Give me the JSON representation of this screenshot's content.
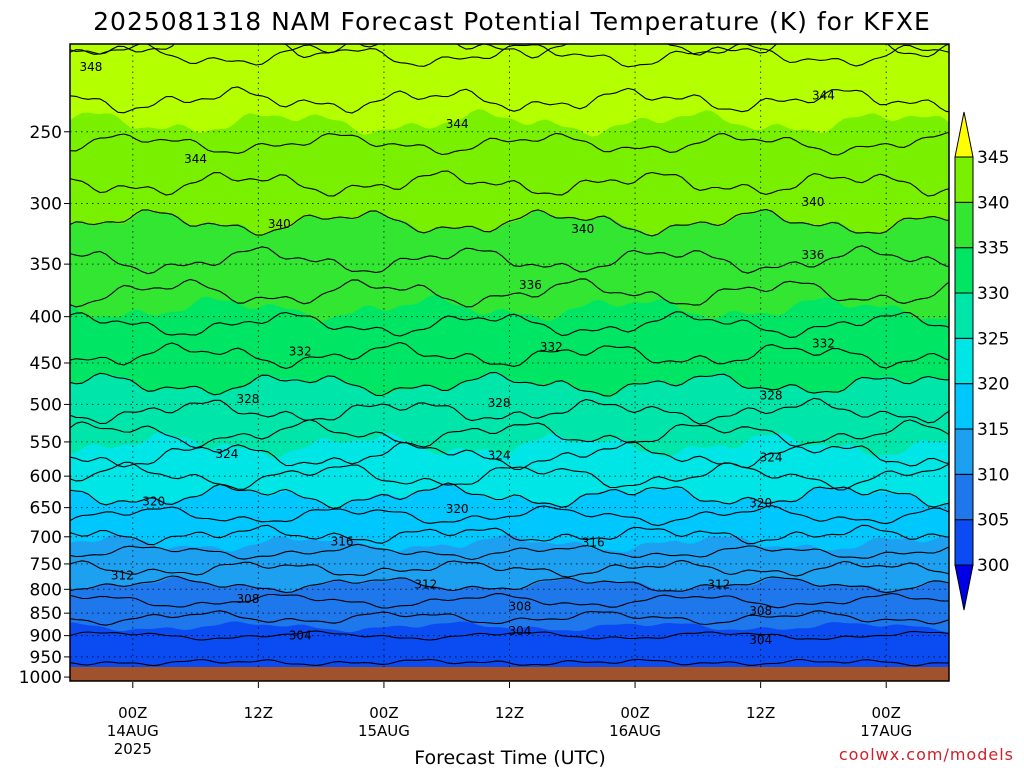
{
  "chart_data": {
    "type": "heatmap",
    "title": "2025081318 NAM Forecast Potential Temperature (K) for KFXE",
    "xlabel": "Forecast Time (UTC)",
    "ylabel": "",
    "y_axis": {
      "scale": "log-pressure",
      "range_hpa": [
        200,
        1010
      ],
      "reversed": true
    },
    "y_ticks": [
      "250",
      "300",
      "350",
      "400",
      "450",
      "500",
      "550",
      "600",
      "650",
      "700",
      "750",
      "800",
      "850",
      "900",
      "950",
      "1000"
    ],
    "x_ticks": [
      {
        "hour": 6,
        "line1": "00Z",
        "line2": "14AUG",
        "line3": "2025"
      },
      {
        "hour": 18,
        "line1": "12Z",
        "line2": "",
        "line3": ""
      },
      {
        "hour": 30,
        "line1": "00Z",
        "line2": "15AUG",
        "line3": ""
      },
      {
        "hour": 42,
        "line1": "12Z",
        "line2": "",
        "line3": ""
      },
      {
        "hour": 54,
        "line1": "00Z",
        "line2": "16AUG",
        "line3": ""
      },
      {
        "hour": 66,
        "line1": "12Z",
        "line2": "",
        "line3": ""
      },
      {
        "hour": 78,
        "line1": "00Z",
        "line2": "17AUG",
        "line3": ""
      }
    ],
    "x_range_hours": [
      0,
      84
    ],
    "colorbar": {
      "levels": [
        300,
        305,
        310,
        315,
        320,
        325,
        330,
        335,
        340,
        345
      ],
      "labels": [
        "300",
        "305",
        "310",
        "315",
        "320",
        "325",
        "330",
        "335",
        "340",
        "345"
      ],
      "colors": [
        "#0000e6",
        "#0a4bf2",
        "#1e78eb",
        "#1ea0f0",
        "#00c8ff",
        "#00e6e6",
        "#00e6aa",
        "#00e664",
        "#32e632",
        "#78f000",
        "#b4ff00",
        "#ffff00"
      ]
    },
    "profile": {
      "pressure_hpa": [
        200,
        250,
        300,
        350,
        400,
        450,
        500,
        550,
        600,
        650,
        700,
        750,
        800,
        850,
        900,
        950,
        1000
      ],
      "theta_k": [
        348.5,
        344.6,
        341.0,
        337.8,
        334.5,
        331.5,
        328.6,
        325.3,
        322.0,
        318.8,
        315.8,
        312.6,
        309.4,
        306.5,
        304.0,
        302.3,
        301.2
      ]
    },
    "contour_labels": [
      {
        "text": "348",
        "hour": 2,
        "p": 212
      },
      {
        "text": "344",
        "hour": 12,
        "p": 268
      },
      {
        "text": "344",
        "hour": 37,
        "p": 245
      },
      {
        "text": "344",
        "hour": 72,
        "p": 228
      },
      {
        "text": "340",
        "hour": 20,
        "p": 316
      },
      {
        "text": "340",
        "hour": 49,
        "p": 320
      },
      {
        "text": "340",
        "hour": 71,
        "p": 299
      },
      {
        "text": "336",
        "hour": 44,
        "p": 369
      },
      {
        "text": "336",
        "hour": 71,
        "p": 342
      },
      {
        "text": "332",
        "hour": 22,
        "p": 437
      },
      {
        "text": "332",
        "hour": 46,
        "p": 432
      },
      {
        "text": "332",
        "hour": 72,
        "p": 428
      },
      {
        "text": "328",
        "hour": 17,
        "p": 493
      },
      {
        "text": "328",
        "hour": 41,
        "p": 498
      },
      {
        "text": "328",
        "hour": 67,
        "p": 489
      },
      {
        "text": "324",
        "hour": 15,
        "p": 567
      },
      {
        "text": "324",
        "hour": 41,
        "p": 569
      },
      {
        "text": "324",
        "hour": 67,
        "p": 572
      },
      {
        "text": "320",
        "hour": 8,
        "p": 640
      },
      {
        "text": "320",
        "hour": 37,
        "p": 652
      },
      {
        "text": "320",
        "hour": 66,
        "p": 642
      },
      {
        "text": "316",
        "hour": 26,
        "p": 708
      },
      {
        "text": "316",
        "hour": 50,
        "p": 710
      },
      {
        "text": "312",
        "hour": 5,
        "p": 772
      },
      {
        "text": "312",
        "hour": 34,
        "p": 790
      },
      {
        "text": "312",
        "hour": 62,
        "p": 790
      },
      {
        "text": "308",
        "hour": 17,
        "p": 820
      },
      {
        "text": "308",
        "hour": 43,
        "p": 836
      },
      {
        "text": "308",
        "hour": 66,
        "p": 845
      },
      {
        "text": "304",
        "hour": 22,
        "p": 900
      },
      {
        "text": "304",
        "hour": 43,
        "p": 890
      },
      {
        "text": "304",
        "hour": 66,
        "p": 910
      }
    ],
    "grid": true,
    "legend": "colorbar-right"
  },
  "credit": "coolwx.com/models",
  "colors": {
    "ground": "#a0522d",
    "frame": "#000000"
  }
}
